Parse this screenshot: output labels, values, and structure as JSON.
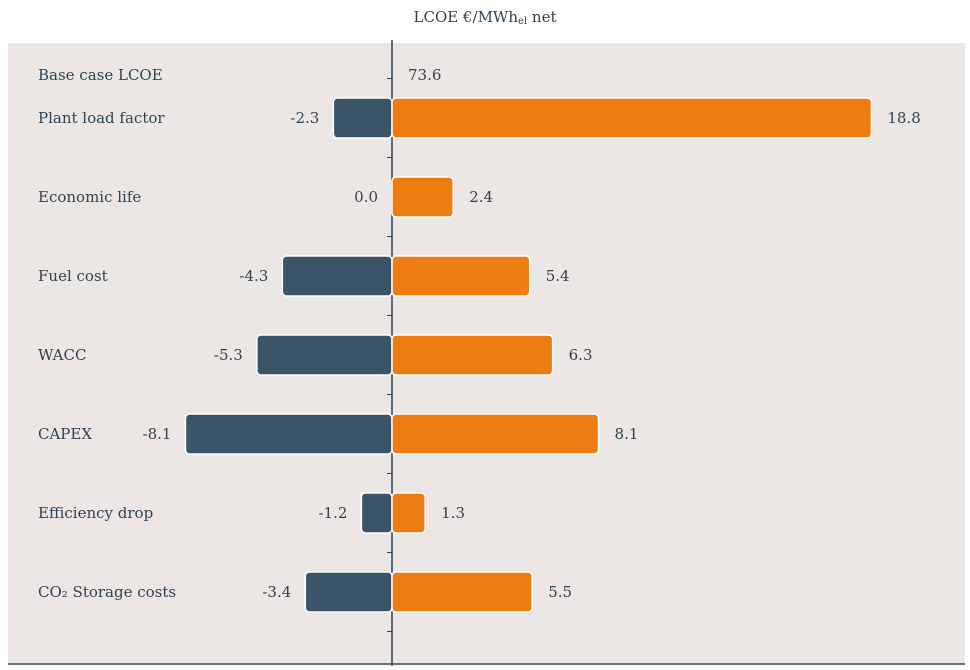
{
  "chart_data": {
    "type": "bar",
    "orientation": "horizontal",
    "chart_subtype": "tornado",
    "title_parts": {
      "main": "LCOE €/MWh",
      "subscript": "el",
      "suffix": " net"
    },
    "base_case": {
      "label": "Base case LCOE",
      "value": "73.6"
    },
    "categories": [
      {
        "label": "Plant load factor",
        "low": -2.3,
        "high": 18.8,
        "low_label": "-2.3",
        "high_label": "18.8"
      },
      {
        "label": "Economic life",
        "low": 0.0,
        "high": 2.4,
        "low_label": "0.0",
        "high_label": "2.4"
      },
      {
        "label": "Fuel cost",
        "low": -4.3,
        "high": 5.4,
        "low_label": "-4.3",
        "high_label": "5.4"
      },
      {
        "label": "WACC",
        "low": -5.3,
        "high": 6.3,
        "low_label": "-5.3",
        "high_label": "6.3"
      },
      {
        "label": "CAPEX",
        "low": -8.1,
        "high": 8.1,
        "low_label": "-8.1",
        "high_label": "8.1"
      },
      {
        "label": "Efficiency drop",
        "low": -1.2,
        "high": 1.3,
        "low_label": "-1.2",
        "high_label": "1.3"
      },
      {
        "label": "CO₂ Storage costs",
        "low": -3.4,
        "high": 5.5,
        "low_label": "-3.4",
        "high_label": "5.5"
      }
    ],
    "colors": {
      "low": "#3a5468",
      "high": "#ee7d11",
      "axis": "#2f4354",
      "background": "#ece6e4"
    },
    "legend": "none",
    "grid": false
  }
}
